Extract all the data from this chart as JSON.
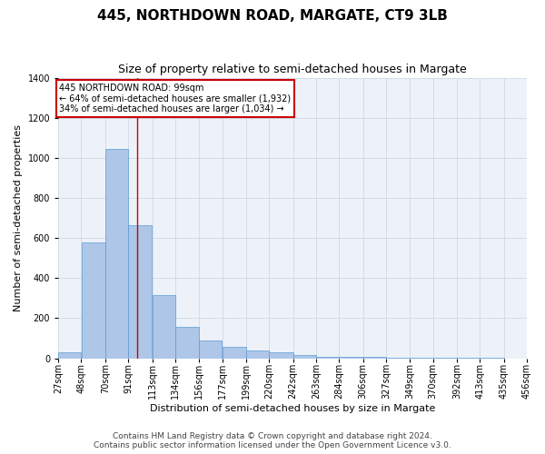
{
  "title": "445, NORTHDOWN ROAD, MARGATE, CT9 3LB",
  "subtitle": "Size of property relative to semi-detached houses in Margate",
  "xlabel": "Distribution of semi-detached houses by size in Margate",
  "ylabel": "Number of semi-detached properties",
  "footer1": "Contains HM Land Registry data © Crown copyright and database right 2024.",
  "footer2": "Contains public sector information licensed under the Open Government Licence v3.0.",
  "annotation_line1": "445 NORTHDOWN ROAD: 99sqm",
  "annotation_line2": "← 64% of semi-detached houses are smaller (1,932)",
  "annotation_line3": "34% of semi-detached houses are larger (1,034) →",
  "property_size": 99,
  "bar_left_edges": [
    27,
    48,
    70,
    91,
    113,
    134,
    156,
    177,
    199,
    220,
    242,
    263,
    284,
    306,
    327,
    349,
    370,
    392,
    413,
    435
  ],
  "bar_widths": [
    21,
    22,
    21,
    22,
    21,
    22,
    21,
    22,
    21,
    22,
    21,
    21,
    22,
    21,
    22,
    21,
    22,
    21,
    22,
    21
  ],
  "bar_heights": [
    30,
    580,
    1045,
    665,
    315,
    155,
    90,
    55,
    40,
    30,
    15,
    5,
    5,
    5,
    2,
    2,
    1,
    1,
    1,
    0
  ],
  "bar_color": "#aec6e8",
  "bar_edgecolor": "#5b9bd5",
  "vline_color": "#cc0000",
  "vline_x": 99,
  "annotation_box_color": "#cc0000",
  "annotation_bg": "white",
  "ylim": [
    0,
    1400
  ],
  "yticks": [
    0,
    200,
    400,
    600,
    800,
    1000,
    1200,
    1400
  ],
  "xtick_positions": [
    27,
    48,
    70,
    91,
    113,
    134,
    156,
    177,
    199,
    220,
    242,
    263,
    284,
    306,
    327,
    349,
    370,
    392,
    413,
    435,
    456
  ],
  "xtick_labels": [
    "27sqm",
    "48sqm",
    "70sqm",
    "91sqm",
    "113sqm",
    "134sqm",
    "156sqm",
    "177sqm",
    "199sqm",
    "220sqm",
    "242sqm",
    "263sqm",
    "284sqm",
    "306sqm",
    "327sqm",
    "349sqm",
    "370sqm",
    "392sqm",
    "413sqm",
    "435sqm",
    "456sqm"
  ],
  "xlim": [
    27,
    456
  ],
  "grid_color": "#d0d8e8",
  "bg_color": "#edf2f9",
  "title_fontsize": 11,
  "subtitle_fontsize": 9,
  "axis_label_fontsize": 8,
  "tick_fontsize": 7,
  "footer_fontsize": 6.5
}
